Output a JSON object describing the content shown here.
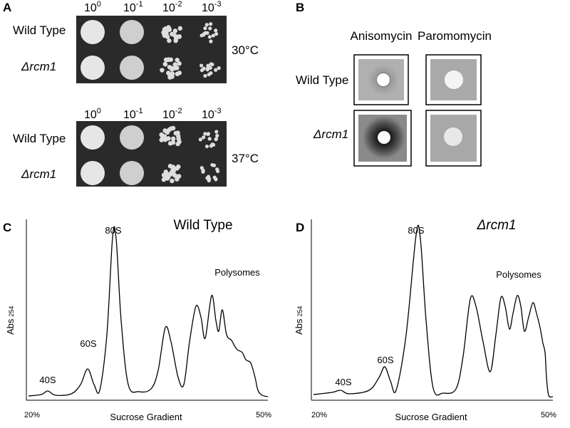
{
  "panel_a": {
    "label": "A",
    "plates": [
      {
        "dilutions": [
          {
            "base": "10",
            "exp": "0"
          },
          {
            "base": "10",
            "exp": "-1"
          },
          {
            "base": "10",
            "exp": "-2"
          },
          {
            "base": "10",
            "exp": "-3"
          }
        ],
        "rows": [
          "Wild Type",
          "Δrcm1"
        ],
        "temperature": "30°C"
      },
      {
        "dilutions": [
          {
            "base": "10",
            "exp": "0"
          },
          {
            "base": "10",
            "exp": "-1"
          },
          {
            "base": "10",
            "exp": "-2"
          },
          {
            "base": "10",
            "exp": "-3"
          }
        ],
        "rows": [
          "Wild Type",
          "Δrcm1"
        ],
        "temperature": "37°C"
      }
    ]
  },
  "panel_b": {
    "label": "B",
    "columns": [
      "Anisomycin",
      "Paromomycin"
    ],
    "rows": [
      "Wild Type",
      "Δrcm1"
    ]
  },
  "panel_c": {
    "label": "C",
    "title": "Wild Type",
    "y_label": "Abs",
    "y_sub": "254",
    "peaks": [
      "40S",
      "60S",
      "80S",
      "Polysomes"
    ],
    "x_label": "Sucrose Gradient",
    "x_start": "20%",
    "x_end": "50%"
  },
  "panel_d": {
    "label": "D",
    "title": "Δrcm1",
    "y_label": "Abs",
    "y_sub": "254",
    "peaks": [
      "40S",
      "60S",
      "80S",
      "Polysomes"
    ],
    "x_label": "Sucrose Gradient",
    "x_start": "20%",
    "x_end": "50%"
  }
}
